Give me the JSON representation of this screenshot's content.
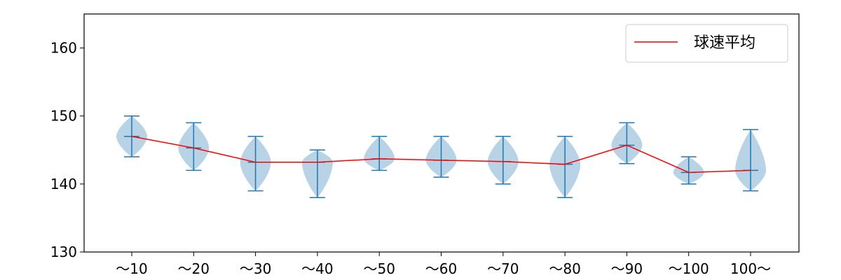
{
  "chart_data": {
    "type": "violin",
    "categories": [
      "～10",
      "～20",
      "～30",
      "～40",
      "～50",
      "～60",
      "～70",
      "～80",
      "～90",
      "～100",
      "100～"
    ],
    "ylim": [
      130,
      165
    ],
    "yticks": [
      130,
      140,
      150,
      160
    ],
    "grid": false,
    "legend": {
      "position": "top-right",
      "entries": [
        {
          "label": "球速平均",
          "color": "#ff0000"
        }
      ]
    },
    "series": [
      {
        "name": "球速平均",
        "type": "line",
        "color": "#ff0000",
        "values": [
          147.0,
          145.3,
          143.2,
          143.2,
          143.7,
          143.5,
          143.3,
          142.9,
          145.7,
          141.7,
          142.0
        ]
      }
    ],
    "distributions": [
      {
        "min": 144,
        "max": 150,
        "mean": 147.0
      },
      {
        "min": 142,
        "max": 149,
        "mean": 145.3
      },
      {
        "min": 139,
        "max": 147,
        "mean": 143.2
      },
      {
        "min": 138,
        "max": 145,
        "mean": 143.2
      },
      {
        "min": 142,
        "max": 147,
        "mean": 143.7
      },
      {
        "min": 141,
        "max": 147,
        "mean": 143.5
      },
      {
        "min": 140,
        "max": 147,
        "mean": 143.3
      },
      {
        "min": 138,
        "max": 147,
        "mean": 142.9
      },
      {
        "min": 143,
        "max": 149,
        "mean": 145.7
      },
      {
        "min": 140,
        "max": 144,
        "mean": 141.7
      },
      {
        "min": 139,
        "max": 148,
        "mean": 142.0
      }
    ],
    "colors": {
      "violin_fill": "#a6c8e0",
      "whisker": "#1f77b4",
      "mean_line": "#ff0000",
      "axis": "#000000"
    }
  }
}
